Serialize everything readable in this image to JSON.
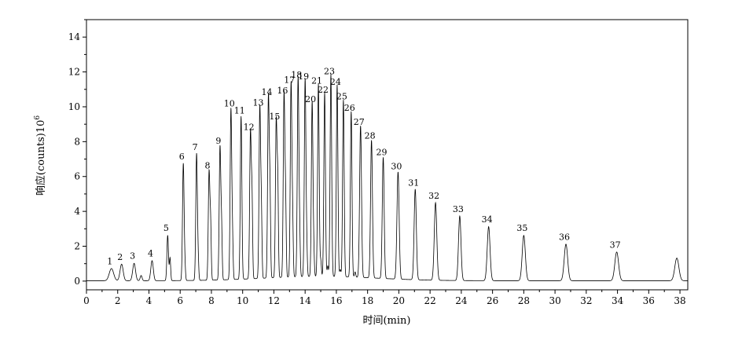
{
  "chart_data": {
    "type": "line",
    "xlabel": "时间(min)",
    "ylabel_prefix": "响应(counts)10",
    "ylabel_exponent": "6",
    "xlim": [
      0,
      38.5
    ],
    "ylim": [
      -0.5,
      15
    ],
    "xticks": [
      0,
      2,
      4,
      6,
      8,
      10,
      12,
      14,
      16,
      18,
      20,
      22,
      24,
      26,
      28,
      30,
      32,
      34,
      36,
      38
    ],
    "yticks": [
      0,
      2,
      4,
      6,
      8,
      10,
      12,
      14
    ],
    "grid": false,
    "baseline": 0.02,
    "peaks": [
      {
        "label": "1",
        "t": 1.6,
        "h": 0.7,
        "w": 0.14
      },
      {
        "label": "2",
        "t": 2.25,
        "h": 0.95,
        "w": 0.1
      },
      {
        "label": "3",
        "t": 3.05,
        "h": 1.0,
        "w": 0.09
      },
      {
        "label": "4",
        "t": 4.2,
        "h": 1.15,
        "w": 0.08
      },
      {
        "label": "5",
        "t": 5.2,
        "h": 2.6,
        "w": 0.05
      },
      {
        "label": "6",
        "t": 6.2,
        "h": 6.7,
        "w": 0.05
      },
      {
        "label": "7",
        "t": 7.05,
        "h": 7.25,
        "w": 0.05
      },
      {
        "label": "8",
        "t": 7.85,
        "h": 6.2,
        "w": 0.05
      },
      {
        "label": "9",
        "t": 8.55,
        "h": 7.6,
        "w": 0.05
      },
      {
        "label": "10",
        "t": 9.25,
        "h": 9.75,
        "w": 0.05
      },
      {
        "label": "11",
        "t": 9.9,
        "h": 9.35,
        "w": 0.05
      },
      {
        "label": "12",
        "t": 10.5,
        "h": 8.4,
        "w": 0.05
      },
      {
        "label": "13",
        "t": 11.1,
        "h": 9.8,
        "w": 0.05
      },
      {
        "label": "14",
        "t": 11.65,
        "h": 10.4,
        "w": 0.05
      },
      {
        "label": "15",
        "t": 12.15,
        "h": 9.0,
        "w": 0.05
      },
      {
        "label": "16",
        "t": 12.65,
        "h": 10.5,
        "w": 0.05
      },
      {
        "label": "17",
        "t": 13.1,
        "h": 11.1,
        "w": 0.05
      },
      {
        "label": "18",
        "t": 13.55,
        "h": 11.4,
        "w": 0.05
      },
      {
        "label": "19",
        "t": 14.0,
        "h": 11.3,
        "w": 0.05
      },
      {
        "label": "20",
        "t": 14.45,
        "h": 10.0,
        "w": 0.05
      },
      {
        "label": "21",
        "t": 14.85,
        "h": 11.05,
        "w": 0.05
      },
      {
        "label": "22",
        "t": 15.25,
        "h": 10.55,
        "w": 0.05
      },
      {
        "label": "23",
        "t": 15.65,
        "h": 11.6,
        "w": 0.05
      },
      {
        "label": "24",
        "t": 16.05,
        "h": 11.0,
        "w": 0.05
      },
      {
        "label": "25",
        "t": 16.45,
        "h": 10.15,
        "w": 0.05
      },
      {
        "label": "26",
        "t": 16.95,
        "h": 9.5,
        "w": 0.05
      },
      {
        "label": "27",
        "t": 17.55,
        "h": 8.7,
        "w": 0.06
      },
      {
        "label": "28",
        "t": 18.25,
        "h": 7.9,
        "w": 0.06
      },
      {
        "label": "29",
        "t": 19.0,
        "h": 6.95,
        "w": 0.06
      },
      {
        "label": "30",
        "t": 19.95,
        "h": 6.15,
        "w": 0.07
      },
      {
        "label": "31",
        "t": 21.05,
        "h": 5.2,
        "w": 0.07
      },
      {
        "label": "32",
        "t": 22.35,
        "h": 4.45,
        "w": 0.08
      },
      {
        "label": "33",
        "t": 23.9,
        "h": 3.7,
        "w": 0.08
      },
      {
        "label": "34",
        "t": 25.75,
        "h": 3.1,
        "w": 0.09
      },
      {
        "label": "35",
        "t": 28.0,
        "h": 2.6,
        "w": 0.1
      },
      {
        "label": "36",
        "t": 30.7,
        "h": 2.1,
        "w": 0.11
      },
      {
        "label": "37",
        "t": 33.95,
        "h": 1.65,
        "w": 0.12
      },
      {
        "label": "",
        "t": 37.8,
        "h": 1.3,
        "w": 0.13
      }
    ],
    "minor_peaks": [
      {
        "t": 3.5,
        "h": 0.3,
        "w": 0.06
      },
      {
        "t": 5.35,
        "h": 1.3,
        "w": 0.04
      },
      {
        "t": 6.3,
        "h": 0.8,
        "w": 0.04
      },
      {
        "t": 7.15,
        "h": 1.1,
        "w": 0.04
      },
      {
        "t": 7.95,
        "h": 3.0,
        "w": 0.04
      },
      {
        "t": 8.65,
        "h": 2.8,
        "w": 0.04
      },
      {
        "t": 9.35,
        "h": 2.2,
        "w": 0.04
      },
      {
        "t": 10.6,
        "h": 4.3,
        "w": 0.04
      },
      {
        "t": 11.2,
        "h": 3.5,
        "w": 0.04
      },
      {
        "t": 11.75,
        "h": 4.6,
        "w": 0.04
      },
      {
        "t": 12.25,
        "h": 5.0,
        "w": 0.04
      },
      {
        "t": 12.75,
        "h": 4.0,
        "w": 0.04
      },
      {
        "t": 13.2,
        "h": 3.0,
        "w": 0.04
      },
      {
        "t": 13.65,
        "h": 2.2,
        "w": 0.04
      },
      {
        "t": 14.1,
        "h": 1.6,
        "w": 0.04
      },
      {
        "t": 14.55,
        "h": 1.3,
        "w": 0.04
      },
      {
        "t": 15.0,
        "h": 0.9,
        "w": 0.04
      },
      {
        "t": 15.45,
        "h": 0.6,
        "w": 0.04
      },
      {
        "t": 16.25,
        "h": 0.4,
        "w": 0.04
      },
      {
        "t": 17.2,
        "h": 0.3,
        "w": 0.04
      }
    ]
  }
}
